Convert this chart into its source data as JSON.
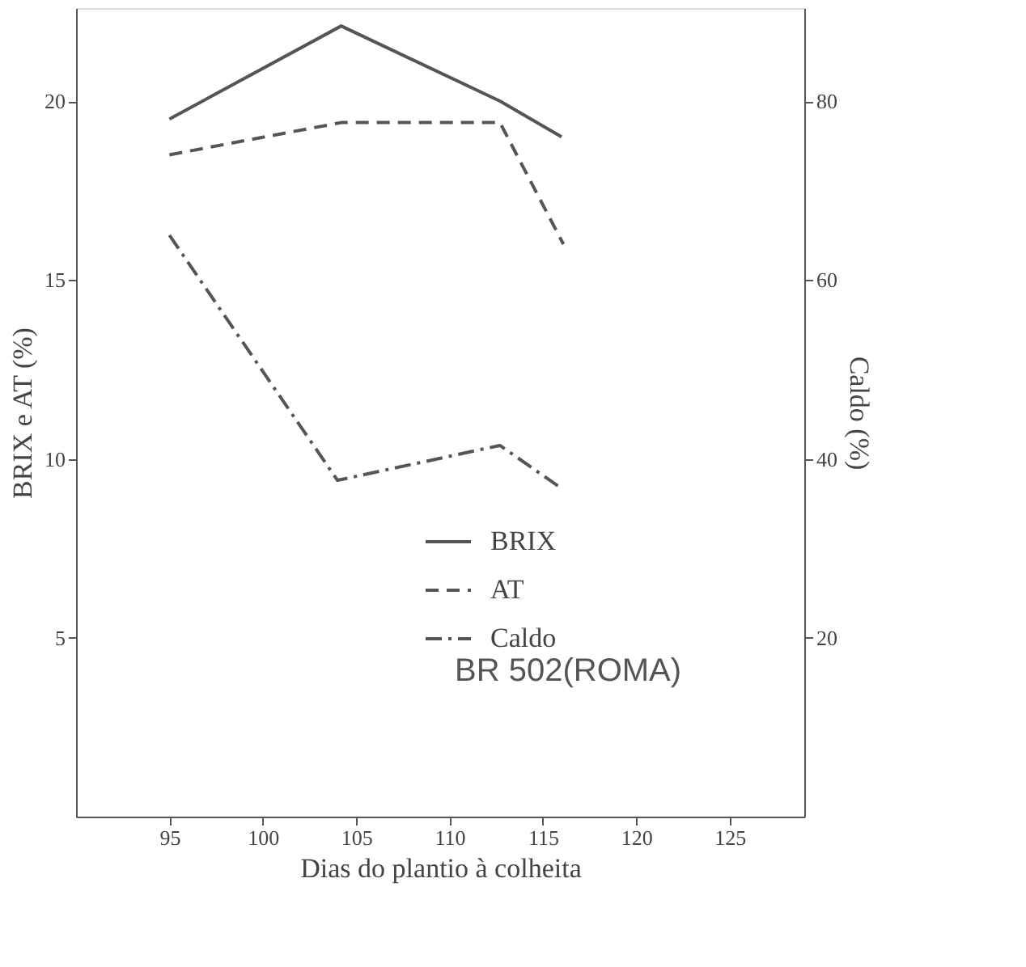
{
  "chart_data": {
    "type": "line",
    "xlabel": "Dias do plantio à colheita",
    "ylabel": "BRIX e AT (%)",
    "y2label": "Caldo (%)",
    "xlim": [
      90,
      129
    ],
    "xticks": [
      95,
      100,
      105,
      110,
      115,
      120,
      125
    ],
    "ylim": [
      0,
      22.6
    ],
    "yticks": [
      5,
      10,
      15,
      20
    ],
    "y2lim": [
      0,
      90.4
    ],
    "y2ticks": [
      20,
      40,
      60,
      80
    ],
    "series": [
      {
        "name": "BRIX",
        "color": "#555555",
        "line_style": "solid",
        "x": [
          95,
          104.2,
          112.7,
          116
        ],
        "values": [
          19.5,
          22.1,
          20.0,
          19.0
        ]
      },
      {
        "name": "AT",
        "color": "#555555",
        "line_style": "dashed",
        "x": [
          95,
          104.2,
          112.7,
          116.1
        ],
        "values": [
          18.5,
          19.4,
          19.4,
          16.0
        ]
      },
      {
        "name": "Caldo",
        "color": "#555555",
        "line_style": "dashdot",
        "axis": "y2",
        "x": [
          95,
          104,
          112.7,
          116
        ],
        "values": [
          65,
          37.6,
          41.5,
          36.7
        ]
      }
    ],
    "annotations": [
      "BR 502(ROMA)"
    ],
    "legend": "bottom",
    "grid": false,
    "marker": "none"
  }
}
